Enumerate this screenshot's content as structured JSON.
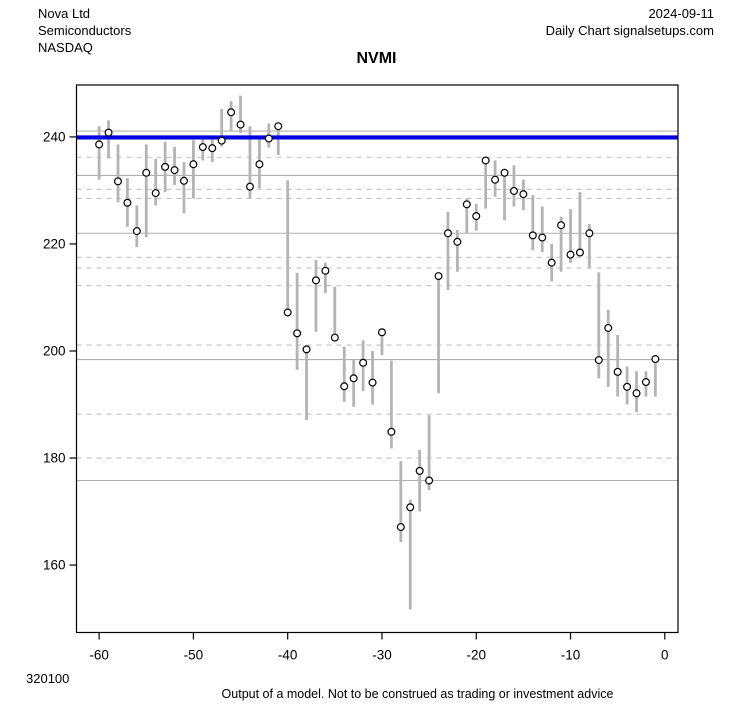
{
  "header": {
    "company": "Nova Ltd",
    "sector": "Semiconductors",
    "exchange": "NASDAQ",
    "date": "2024-09-11",
    "source": "Daily Chart signalsetups.com"
  },
  "footer": {
    "code": "320100",
    "disclaimer": "Output of a model. Not to be construed as trading or investment advice"
  },
  "chart_data": {
    "type": "hlc_bars",
    "title": "NVMI",
    "xlabel": "",
    "ylabel": "",
    "x_ticks": [
      -60,
      -50,
      -40,
      -30,
      -20,
      -10,
      0
    ],
    "y_ticks": [
      240,
      220,
      200,
      180,
      160
    ],
    "xlim": [
      -62.4,
      1.4
    ],
    "ylim": [
      147.4,
      249.7
    ],
    "grid": "model-levels",
    "legend": "none",
    "blue_line_level": 239.9,
    "gridlines_solid": [
      241.1,
      232.8,
      222.0,
      198.4,
      175.8
    ],
    "gridlines_dashed": [
      236.2,
      230.2,
      228.5,
      217.5,
      215.5,
      212.2,
      201.1,
      188.2,
      180.0
    ],
    "colors": {
      "blue_line": "#0000e0",
      "bars": "#b4b4b4",
      "grid_solid": "#b0b0b0",
      "grid_dashed": "#c2c2c2",
      "circle_fill": "#ffffff",
      "circle_stroke": "#000000",
      "axis": "#000000"
    },
    "columns": [
      "day",
      "low",
      "high",
      "close"
    ],
    "points": [
      [
        -60,
        232.0,
        242.0,
        238.6
      ],
      [
        -59,
        236.0,
        243.1,
        240.8
      ],
      [
        -58,
        227.8,
        238.6,
        231.7
      ],
      [
        -57,
        223.2,
        232.3,
        227.7
      ],
      [
        -56,
        219.4,
        227.2,
        222.4
      ],
      [
        -55,
        221.3,
        238.6,
        233.3
      ],
      [
        -54,
        227.2,
        235.9,
        229.5
      ],
      [
        -53,
        229.7,
        239.1,
        234.4
      ],
      [
        -52,
        231.0,
        238.1,
        233.8
      ],
      [
        -51,
        225.7,
        235.3,
        231.8
      ],
      [
        -50,
        228.5,
        239.4,
        234.9
      ],
      [
        -49,
        235.6,
        239.9,
        238.1
      ],
      [
        -48,
        235.3,
        240.0,
        237.9
      ],
      [
        -47,
        238.2,
        245.2,
        239.3
      ],
      [
        -46,
        241.0,
        246.7,
        244.6
      ],
      [
        -45,
        240.7,
        247.7,
        242.3
      ],
      [
        -44,
        228.5,
        242.0,
        230.7
      ],
      [
        -43,
        230.4,
        239.9,
        234.9
      ],
      [
        -42,
        238.0,
        242.5,
        239.7
      ],
      [
        -41,
        236.6,
        242.2,
        242.0
      ],
      [
        -40,
        207.0,
        231.9,
        207.2
      ],
      [
        -39,
        196.5,
        214.6,
        203.3
      ],
      [
        -38,
        187.1,
        200.7,
        200.3
      ],
      [
        -37,
        203.6,
        217.0,
        213.2
      ],
      [
        -36,
        210.8,
        216.5,
        215.0
      ],
      [
        -35,
        202.5,
        212.0,
        202.5
      ],
      [
        -34,
        190.5,
        200.8,
        193.4
      ],
      [
        -33,
        189.6,
        198.3,
        194.9
      ],
      [
        -32,
        192.5,
        202.0,
        197.8
      ],
      [
        -31,
        190.0,
        200.0,
        194.1
      ],
      [
        -30,
        199.2,
        204.2,
        203.5
      ],
      [
        -29,
        181.8,
        198.2,
        184.9
      ],
      [
        -28,
        164.3,
        179.4,
        167.1
      ],
      [
        -27,
        151.7,
        172.2,
        170.8
      ],
      [
        -26,
        170.0,
        181.5,
        177.6
      ],
      [
        -25,
        174.0,
        188.0,
        175.8
      ],
      [
        -24,
        192.1,
        214.6,
        214.0
      ],
      [
        -23,
        211.4,
        226.0,
        222.0
      ],
      [
        -22,
        214.8,
        222.6,
        220.4
      ],
      [
        -21,
        222.0,
        228.5,
        227.4
      ],
      [
        -20,
        222.5,
        227.5,
        225.2
      ],
      [
        -19,
        226.6,
        235.8,
        235.6
      ],
      [
        -18,
        228.8,
        235.6,
        232.0
      ],
      [
        -17,
        224.4,
        233.4,
        233.3
      ],
      [
        -16,
        227.0,
        234.7,
        229.9
      ],
      [
        -15,
        226.3,
        232.0,
        229.3
      ],
      [
        -14,
        218.8,
        229.1,
        221.6
      ],
      [
        -13,
        218.5,
        227.0,
        221.2
      ],
      [
        -12,
        213.0,
        220.0,
        216.5
      ],
      [
        -11,
        214.8,
        225.1,
        223.5
      ],
      [
        -10,
        216.5,
        226.5,
        218.0
      ],
      [
        -9,
        218.2,
        229.7,
        218.4
      ],
      [
        -8,
        215.6,
        223.7,
        222.0
      ],
      [
        -7,
        194.9,
        214.7,
        198.3
      ],
      [
        -6,
        193.3,
        207.7,
        204.3
      ],
      [
        -5,
        191.5,
        203.0,
        196.1
      ],
      [
        -4,
        190.0,
        197.1,
        193.3
      ],
      [
        -3,
        188.6,
        196.2,
        192.1
      ],
      [
        -2,
        191.5,
        196.2,
        194.2
      ],
      [
        -1,
        191.5,
        198.5,
        198.5
      ]
    ]
  }
}
